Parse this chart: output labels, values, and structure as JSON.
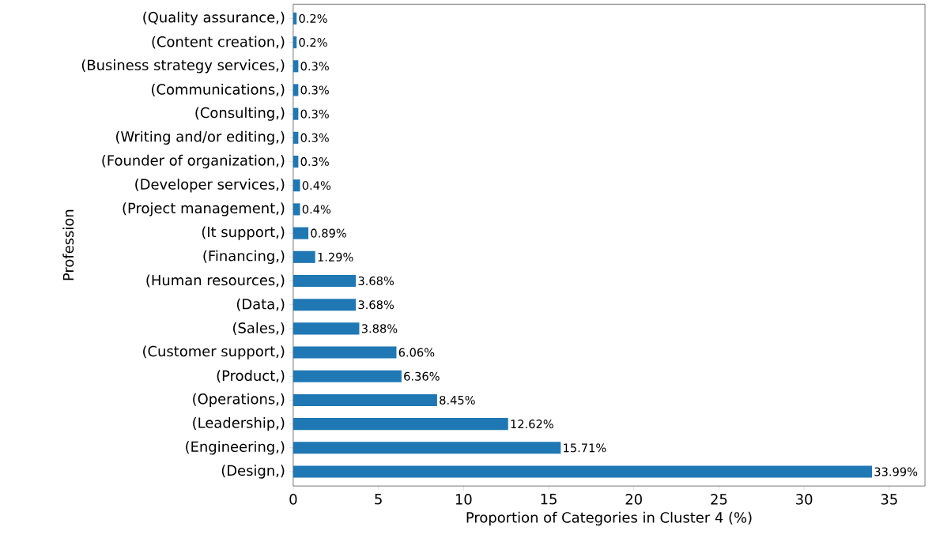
{
  "chart_data": {
    "type": "bar",
    "orientation": "horizontal",
    "xlabel": "Proportion of Categories in Cluster 4 (%)",
    "ylabel": "Profession",
    "categories": [
      "(Quality assurance,)",
      "(Content creation,)",
      "(Business strategy services,)",
      "(Communications,)",
      "(Consulting,)",
      "(Writing and/or editing,)",
      "(Founder of organization,)",
      "(Developer services,)",
      "(Project management,)",
      "(It support,)",
      "(Financing,)",
      "(Human resources,)",
      "(Data,)",
      "(Sales,)",
      "(Customer support,)",
      "(Product,)",
      "(Operations,)",
      "(Leadership,)",
      "(Engineering,)",
      "(Design,)"
    ],
    "values": [
      0.2,
      0.2,
      0.3,
      0.3,
      0.3,
      0.3,
      0.3,
      0.4,
      0.4,
      0.89,
      1.29,
      3.68,
      3.68,
      3.88,
      6.06,
      6.36,
      8.45,
      12.62,
      15.71,
      33.99
    ],
    "value_labels": [
      "0.2%",
      "0.2%",
      "0.3%",
      "0.3%",
      "0.3%",
      "0.3%",
      "0.3%",
      "0.4%",
      "0.4%",
      "0.89%",
      "1.29%",
      "3.68%",
      "3.68%",
      "3.88%",
      "6.06%",
      "6.36%",
      "8.45%",
      "12.62%",
      "15.71%",
      "33.99%"
    ],
    "color": "#1f77b4",
    "xlim": [
      0,
      37.1
    ],
    "xticks": [
      0,
      5,
      10,
      15,
      20,
      25,
      30,
      35
    ],
    "grid": false
  }
}
